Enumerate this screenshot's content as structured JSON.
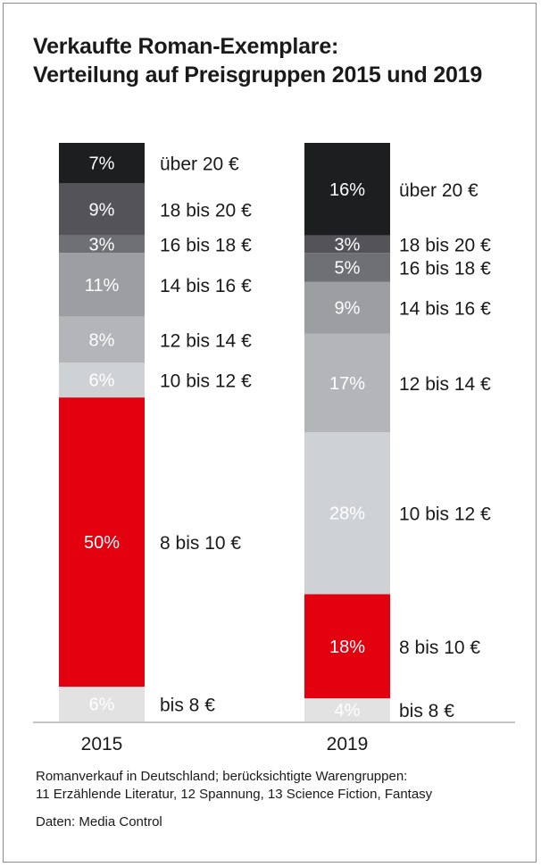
{
  "title_lines": [
    "Verkaufte Roman-Exemplare:",
    "Verteilung auf Preisgruppen 2015 und 2019"
  ],
  "footer": {
    "note_lines": [
      "Romanverkauf in Deutschland; berücksichtigte Warengruppen:",
      "11 Erzählende Literatur, 12 Spannung, 13 Science Fiction, Fantasy"
    ],
    "source": "Daten: Media Control"
  },
  "colors": {
    "uber_20": "#1d1e20",
    "18_20": "#545458",
    "16_18": "#6f7074",
    "14_16": "#9d9ea1",
    "12_14": "#b4b5b8",
    "10_12": "#cfd2d4",
    "8_10": "#e3000f",
    "bis_8": "#e2e2e2"
  },
  "chart_data": {
    "type": "bar",
    "stacked": true,
    "ylim": [
      0,
      100
    ],
    "categories": [
      "2015",
      "2019"
    ],
    "stacks": [
      {
        "year": "2015",
        "segments": [
          {
            "label": "bis 8 €",
            "value": 6,
            "value_label": "6%",
            "color_key": "bis_8"
          },
          {
            "label": "8 bis 10 €",
            "value": 50,
            "value_label": "50%",
            "color_key": "8_10"
          },
          {
            "label": "10 bis 12 €",
            "value": 6,
            "value_label": "6%",
            "color_key": "10_12"
          },
          {
            "label": "12 bis 14 €",
            "value": 8,
            "value_label": "8%",
            "color_key": "12_14"
          },
          {
            "label": "14 bis 16 €",
            "value": 11,
            "value_label": "11%",
            "color_key": "14_16"
          },
          {
            "label": "16 bis 18 €",
            "value": 3,
            "value_label": "3%",
            "color_key": "16_18"
          },
          {
            "label": "18 bis 20 €",
            "value": 9,
            "value_label": "9%",
            "color_key": "18_20"
          },
          {
            "label": "über 20 €",
            "value": 7,
            "value_label": "7%",
            "color_key": "uber_20"
          }
        ]
      },
      {
        "year": "2019",
        "segments": [
          {
            "label": "bis 8 €",
            "value": 4,
            "value_label": "4%",
            "color_key": "bis_8"
          },
          {
            "label": "8 bis 10 €",
            "value": 18,
            "value_label": "18%",
            "color_key": "8_10"
          },
          {
            "label": "10 bis 12 €",
            "value": 28,
            "value_label": "28%",
            "color_key": "10_12"
          },
          {
            "label": "12 bis 14 €",
            "value": 17,
            "value_label": "17%",
            "color_key": "12_14"
          },
          {
            "label": "14 bis 16 €",
            "value": 9,
            "value_label": "9%",
            "color_key": "14_16"
          },
          {
            "label": "16 bis 18 €",
            "value": 5,
            "value_label": "5%",
            "color_key": "16_18"
          },
          {
            "label": "18 bis 20 €",
            "value": 3,
            "value_label": "3%",
            "color_key": "18_20"
          },
          {
            "label": "über 20 €",
            "value": 16,
            "value_label": "16%",
            "color_key": "uber_20"
          }
        ]
      }
    ]
  }
}
